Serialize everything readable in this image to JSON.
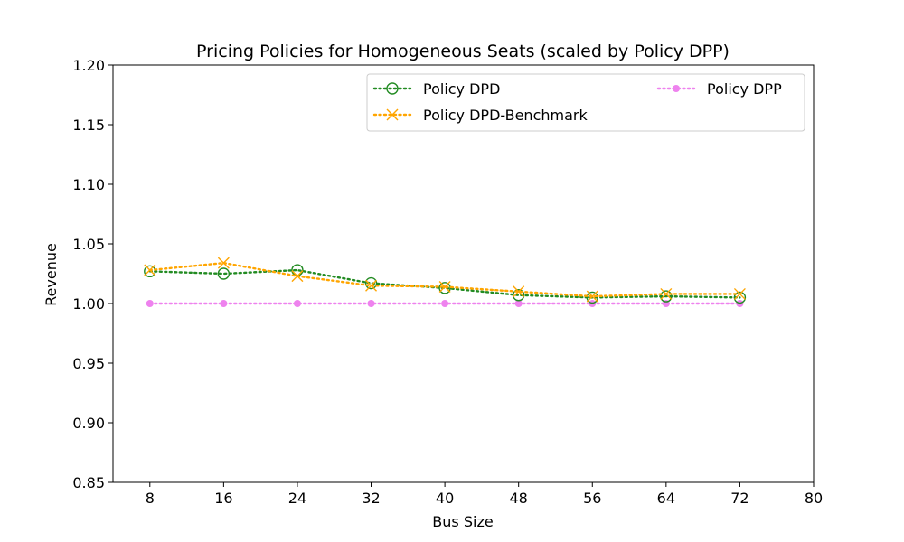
{
  "chart_data": {
    "type": "line",
    "title": "Pricing Policies for Homogeneous Seats (scaled by Policy DPP)",
    "xlabel": "Bus Size",
    "ylabel": "Revenue",
    "xlim": [
      4,
      80
    ],
    "ylim": [
      0.85,
      1.2
    ],
    "xticks": [
      8,
      16,
      24,
      32,
      40,
      48,
      56,
      64,
      72,
      80
    ],
    "yticks": [
      0.85,
      0.9,
      0.95,
      1.0,
      1.05,
      1.1,
      1.15,
      1.2
    ],
    "ytick_labels": [
      "0.85",
      "0.90",
      "0.95",
      "1.00",
      "1.05",
      "1.10",
      "1.15",
      "1.20"
    ],
    "x": [
      8,
      16,
      24,
      32,
      40,
      48,
      56,
      64,
      72
    ],
    "legend_position": "top-right",
    "grid": false,
    "series": [
      {
        "name": "Policy DPD",
        "values": [
          1.027,
          1.025,
          1.028,
          1.017,
          1.013,
          1.007,
          1.005,
          1.006,
          1.005
        ],
        "color": "#228B22",
        "marker": "open-circle",
        "linestyle": "dotted"
      },
      {
        "name": "Policy DPD-Benchmark",
        "values": [
          1.028,
          1.034,
          1.023,
          1.015,
          1.014,
          1.01,
          1.006,
          1.008,
          1.008
        ],
        "color": "#FFA500",
        "marker": "x",
        "linestyle": "dotted"
      },
      {
        "name": "Policy DPP",
        "values": [
          1.0,
          1.0,
          1.0,
          1.0,
          1.0,
          1.0,
          1.0,
          1.0,
          1.0
        ],
        "color": "#EE82EE",
        "marker": "dot",
        "linestyle": "dotted"
      }
    ]
  }
}
